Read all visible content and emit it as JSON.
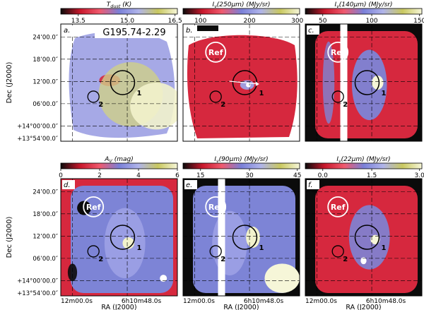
{
  "figure": {
    "axes": {
      "ylabel": "Dec (J2000)",
      "xlabel": "RA (J2000)",
      "yticks": [
        "24’00.0″",
        "18’00.0″",
        "12’00.0″",
        "06’00.0″",
        "+14°00’00.0″",
        "+13°54’00.0″"
      ],
      "xticks": [
        "12m00.0s",
        "6h10m48.0s"
      ]
    },
    "panels": [
      {
        "letter": "a.",
        "colorbar_label": "T_dust (K)",
        "colorbar_ticks": [
          "13.5",
          "15.0",
          "16.5"
        ],
        "colormap": [
          "#0b0b0b",
          "#c8182c",
          "#f05a6e",
          "#7a80d8",
          "#b0b4ea",
          "#c9c860",
          "#f6f6d8"
        ],
        "background": "#ffffff",
        "field_color": "#a6a9e6",
        "title": "G195.74-2.29",
        "ref_label": "",
        "labels": [
          "1",
          "2"
        ]
      },
      {
        "letter": "b.",
        "colorbar_label": "I_ν(250μm) (MJy/sr)",
        "colorbar_ticks": [
          "100",
          "200",
          "300"
        ],
        "colormap": [
          "#0b0b0b",
          "#c8182c",
          "#f05a6e",
          "#7a80d8",
          "#b0b4ea",
          "#c9c860",
          "#f6f6d8"
        ],
        "background": "#ffffff",
        "field_color": "#d6283e",
        "title": "",
        "ref_label": "Ref",
        "labels": [
          "1",
          "2"
        ]
      },
      {
        "letter": "c.",
        "colorbar_label": "I_ν(140μm) (MJy/sr)",
        "colorbar_ticks": [
          "50",
          "100",
          "150"
        ],
        "colormap": [
          "#0b0b0b",
          "#c8182c",
          "#f05a6e",
          "#7a80d8",
          "#b0b4ea",
          "#c9c860",
          "#f6f6d8"
        ],
        "background": "#0b0b0b",
        "field_color": "#d6283e",
        "title": "",
        "ref_label": "Ref",
        "labels": [
          "1",
          "2"
        ]
      },
      {
        "letter": "d.",
        "colorbar_label": "A_V (mag)",
        "colorbar_ticks": [
          "0",
          "2",
          "4",
          "6"
        ],
        "colormap": [
          "#0b0b0b",
          "#c8182c",
          "#f05a6e",
          "#7a80d8",
          "#b0b4ea",
          "#c9c860",
          "#f6f6d8"
        ],
        "background": "#d6283e",
        "field_color": "#7d84d6",
        "title": "",
        "ref_label": "Ref",
        "labels": [
          "1",
          "2"
        ]
      },
      {
        "letter": "e.",
        "colorbar_label": "I_ν(90μm) (MJy/sr)",
        "colorbar_ticks": [
          "15",
          "30",
          "45"
        ],
        "colormap": [
          "#0b0b0b",
          "#c8182c",
          "#f05a6e",
          "#7a80d8",
          "#b0b4ea",
          "#c9c860",
          "#f6f6d8"
        ],
        "background": "#0b0b0b",
        "field_color": "#7d84d6",
        "title": "",
        "ref_label": "Ref",
        "labels": [
          "1",
          "2"
        ]
      },
      {
        "letter": "f.",
        "colorbar_label": "I_ν(22μm) (MJy/sr)",
        "colorbar_ticks": [
          "0.0",
          "1.5",
          "3.0"
        ],
        "colormap": [
          "#0b0b0b",
          "#c8182c",
          "#f05a6e",
          "#7a80d8",
          "#b0b4ea",
          "#c9c860",
          "#f6f6d8"
        ],
        "background": "#0b0b0b",
        "field_color": "#d6283e",
        "title": "",
        "ref_label": "Ref",
        "labels": [
          "1",
          "2"
        ]
      }
    ]
  }
}
